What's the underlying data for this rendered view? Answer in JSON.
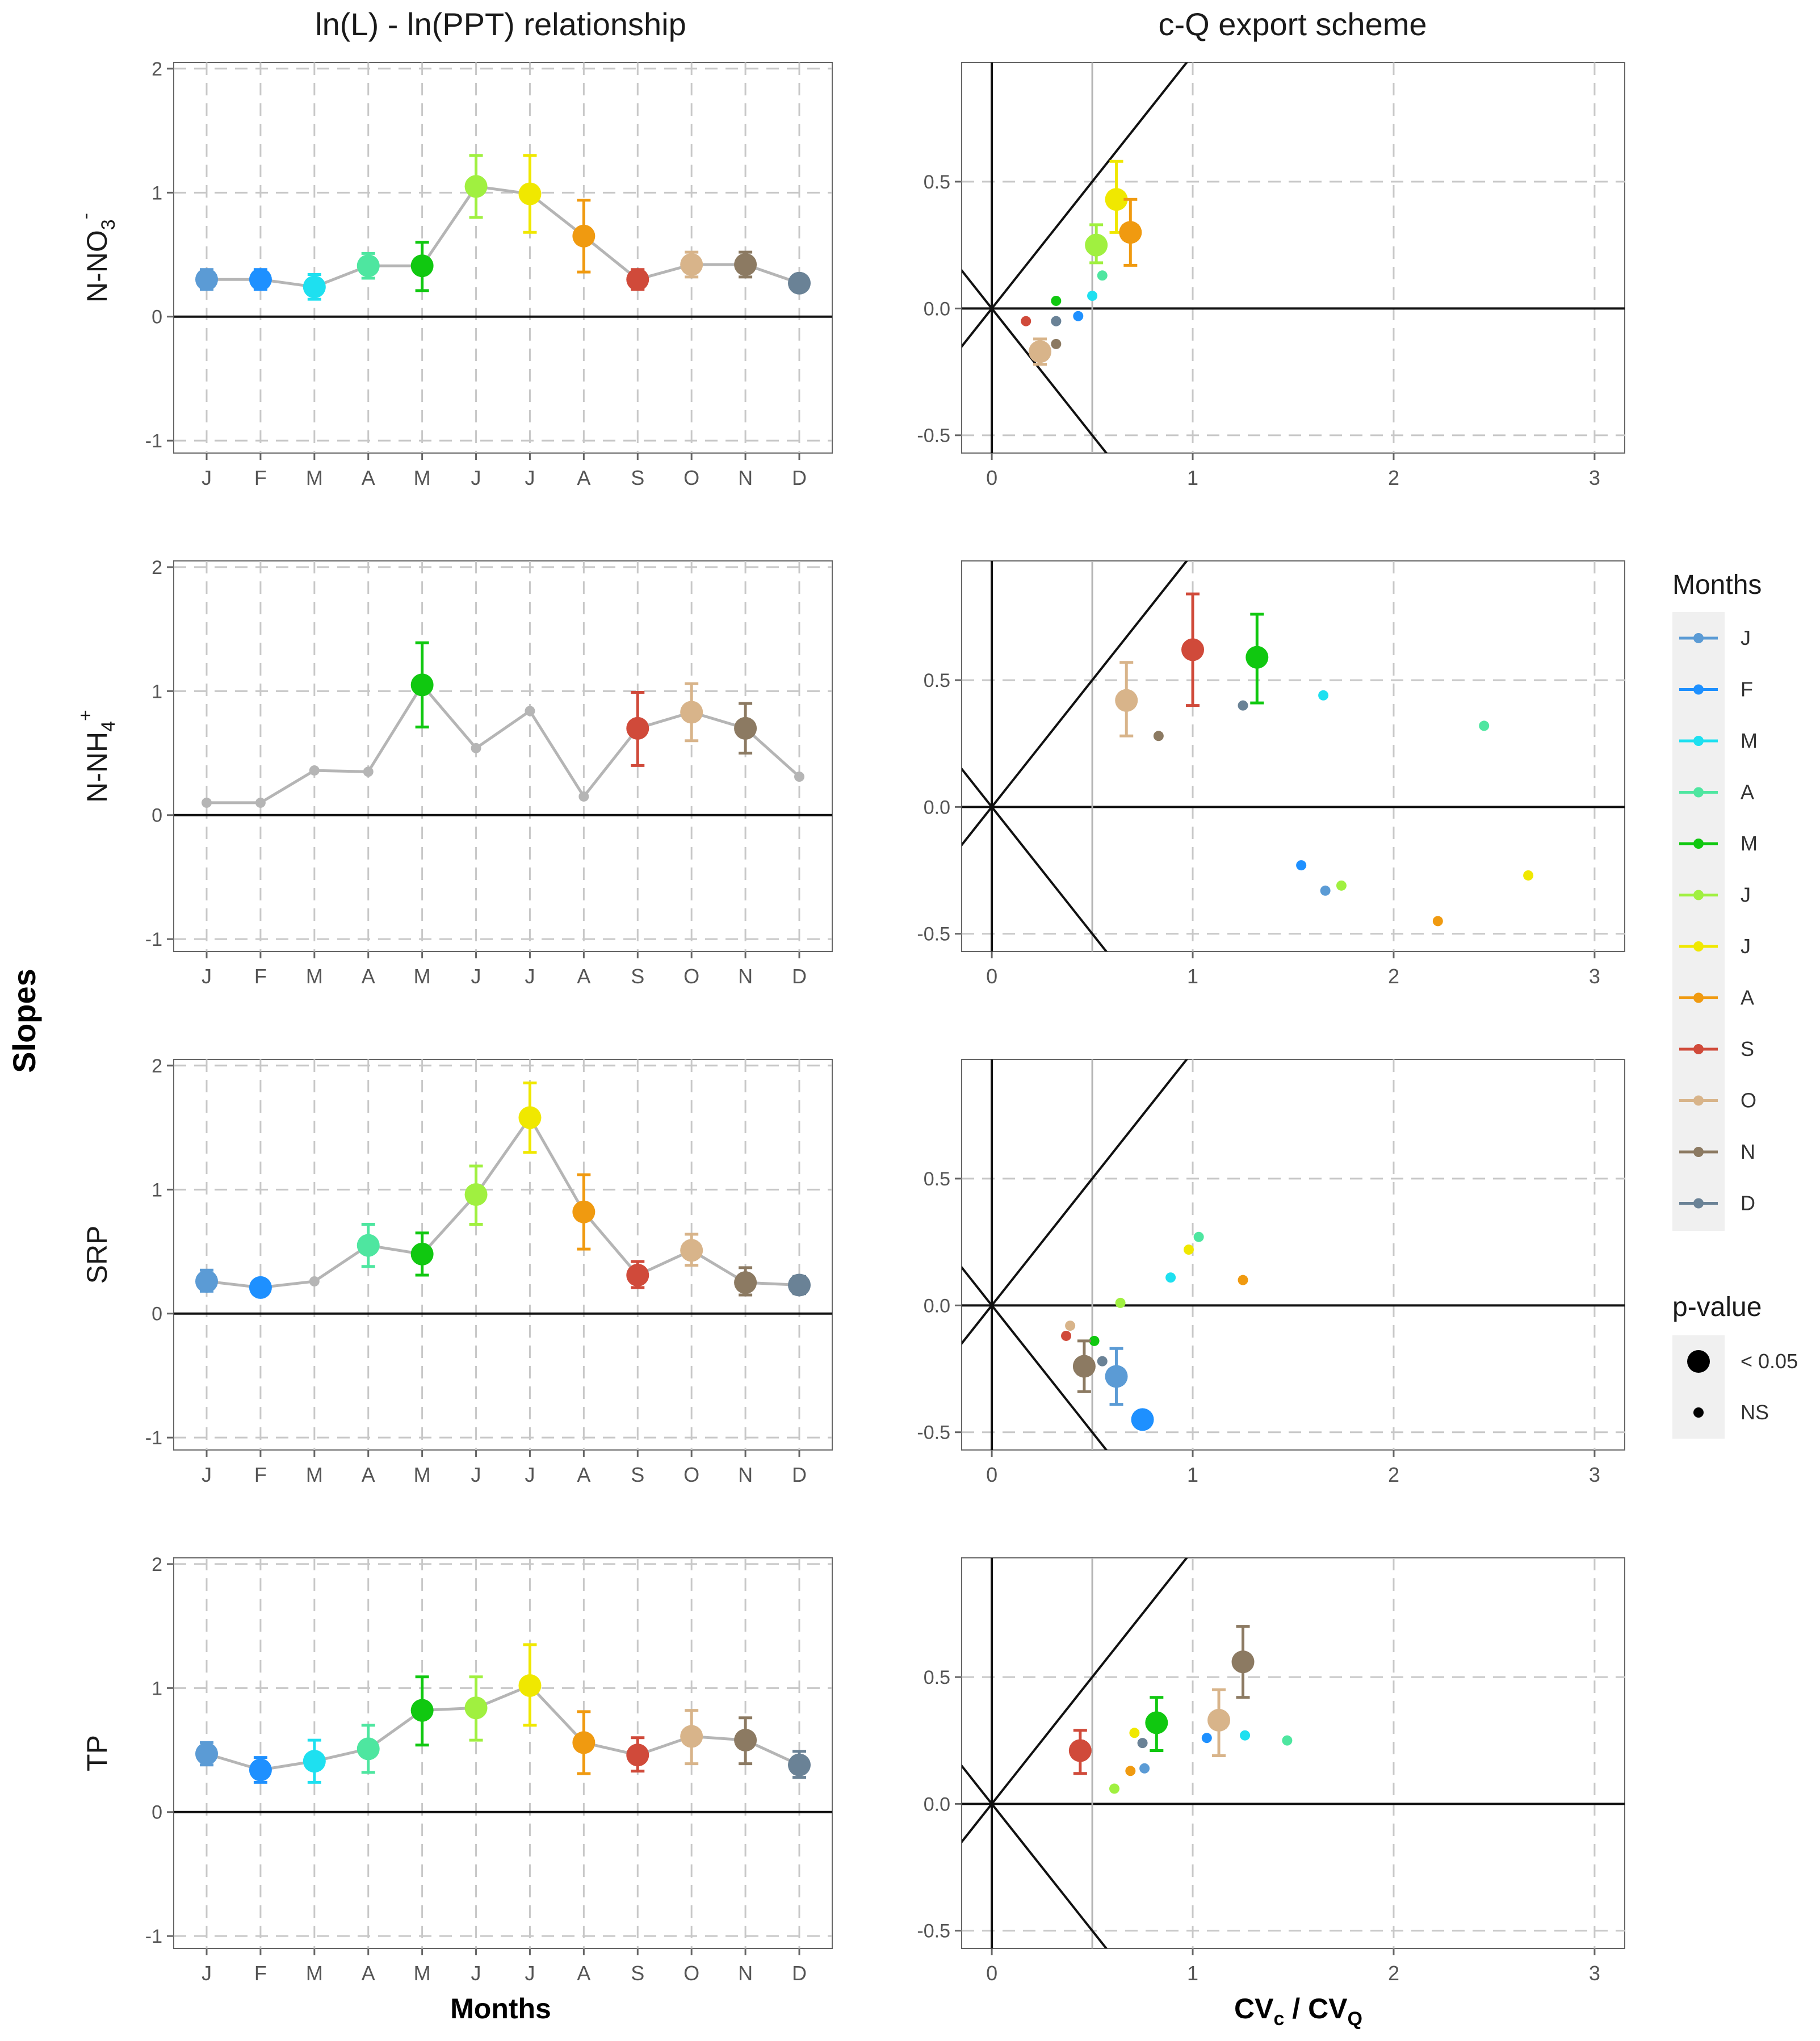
{
  "titles": {
    "left": "ln(L) - ln(PPT) relationship",
    "right": "c-Q export scheme"
  },
  "axis_labels": {
    "y": "Slopes",
    "x_left": "Months",
    "x_right_parts": [
      "CV",
      "c",
      " / CV",
      "Q"
    ]
  },
  "legend": {
    "months_title": "Months",
    "months_labels": [
      "J",
      "F",
      "M",
      "A",
      "M",
      "J",
      "J",
      "A",
      "S",
      "O",
      "N",
      "D"
    ],
    "months_colors": [
      "#5b9bd5",
      "#1e90ff",
      "#1ee0f0",
      "#4ee6a0",
      "#10c810",
      "#a0f040",
      "#f0e800",
      "#f09a10",
      "#d04a3a",
      "#d8b48a",
      "#8c7a62",
      "#6a8296"
    ],
    "pvalue_title": "p-value",
    "pvalue_labels": [
      "< 0.05",
      "NS"
    ]
  },
  "chart_data": [
    {
      "type": "line",
      "panel": "left",
      "row_label": "N-NO3-",
      "row_label_parts": [
        "N-NO",
        "3",
        "-"
      ],
      "categories": [
        "J",
        "F",
        "M",
        "A",
        "M",
        "J",
        "J",
        "A",
        "S",
        "O",
        "N",
        "D"
      ],
      "values": [
        0.3,
        0.3,
        0.24,
        0.41,
        0.41,
        1.05,
        0.99,
        0.65,
        0.3,
        0.42,
        0.42,
        0.27
      ],
      "err_low": [
        0.22,
        0.22,
        0.14,
        0.31,
        0.21,
        0.8,
        0.68,
        0.36,
        0.22,
        0.32,
        0.32,
        0.22
      ],
      "err_high": [
        0.38,
        0.38,
        0.34,
        0.51,
        0.6,
        1.3,
        1.3,
        0.94,
        0.38,
        0.52,
        0.52,
        0.32
      ],
      "significant": [
        true,
        true,
        true,
        true,
        true,
        true,
        true,
        true,
        true,
        true,
        true,
        true
      ],
      "ylim": [
        -1.1,
        2.05
      ],
      "yticks": [
        -1,
        0,
        1,
        2
      ]
    },
    {
      "type": "line",
      "panel": "left",
      "row_label": "N-NH4+",
      "row_label_parts": [
        "N-NH",
        "4",
        "+"
      ],
      "categories": [
        "J",
        "F",
        "M",
        "A",
        "M",
        "J",
        "J",
        "A",
        "S",
        "O",
        "N",
        "D"
      ],
      "values": [
        0.1,
        0.1,
        0.36,
        0.35,
        1.05,
        0.54,
        0.84,
        0.15,
        0.7,
        0.83,
        0.7,
        0.31
      ],
      "err_low": [
        null,
        null,
        null,
        null,
        0.71,
        null,
        null,
        null,
        0.4,
        0.6,
        0.5,
        null
      ],
      "err_high": [
        null,
        null,
        null,
        null,
        1.39,
        null,
        null,
        null,
        0.99,
        1.06,
        0.9,
        null
      ],
      "significant": [
        false,
        false,
        false,
        false,
        true,
        false,
        false,
        false,
        true,
        true,
        true,
        false
      ],
      "ylim": [
        -1.1,
        2.05
      ],
      "yticks": [
        -1,
        0,
        1,
        2
      ]
    },
    {
      "type": "line",
      "panel": "left",
      "row_label": "SRP",
      "row_label_parts": [
        "SRP",
        "",
        ""
      ],
      "categories": [
        "J",
        "F",
        "M",
        "A",
        "M",
        "J",
        "J",
        "A",
        "S",
        "O",
        "N",
        "D"
      ],
      "values": [
        0.26,
        0.21,
        0.26,
        0.55,
        0.48,
        0.96,
        1.58,
        0.82,
        0.31,
        0.51,
        0.25,
        0.23
      ],
      "err_low": [
        0.18,
        0.16,
        null,
        0.38,
        0.31,
        0.72,
        1.3,
        0.52,
        0.21,
        0.39,
        0.15,
        0.16
      ],
      "err_high": [
        0.35,
        0.27,
        null,
        0.72,
        0.65,
        1.19,
        1.86,
        1.12,
        0.42,
        0.64,
        0.37,
        0.3
      ],
      "significant": [
        true,
        true,
        false,
        true,
        true,
        true,
        true,
        true,
        true,
        true,
        true,
        true
      ],
      "ylim": [
        -1.1,
        2.05
      ],
      "yticks": [
        -1,
        0,
        1,
        2
      ]
    },
    {
      "type": "line",
      "panel": "left",
      "row_label": "TP",
      "row_label_parts": [
        "TP",
        "",
        ""
      ],
      "categories": [
        "J",
        "F",
        "M",
        "A",
        "M",
        "J",
        "J",
        "A",
        "S",
        "O",
        "N",
        "D"
      ],
      "values": [
        0.47,
        0.34,
        0.41,
        0.51,
        0.82,
        0.84,
        1.02,
        0.56,
        0.46,
        0.61,
        0.58,
        0.38
      ],
      "err_low": [
        0.38,
        0.24,
        0.24,
        0.32,
        0.54,
        0.58,
        0.7,
        0.31,
        0.33,
        0.39,
        0.39,
        0.28
      ],
      "err_high": [
        0.56,
        0.44,
        0.58,
        0.7,
        1.09,
        1.09,
        1.35,
        0.81,
        0.6,
        0.82,
        0.76,
        0.49
      ],
      "significant": [
        true,
        true,
        true,
        true,
        true,
        true,
        true,
        true,
        true,
        true,
        true,
        true
      ],
      "ylim": [
        -1.1,
        2.05
      ],
      "yticks": [
        -1,
        0,
        1,
        2
      ]
    },
    {
      "type": "scatter",
      "panel": "right",
      "row_label": "N-NO3-",
      "months": [
        "J",
        "F",
        "M",
        "A",
        "M",
        "J",
        "J",
        "A",
        "S",
        "O",
        "N",
        "D"
      ],
      "x": [
        0.32,
        0.43,
        0.5,
        0.55,
        0.32,
        0.52,
        0.62,
        0.69,
        0.17,
        0.24,
        0.32,
        0.32
      ],
      "y": [
        -0.05,
        -0.03,
        0.05,
        0.13,
        0.03,
        0.25,
        0.43,
        0.3,
        -0.05,
        -0.17,
        -0.14,
        -0.05
      ],
      "err_low": [
        null,
        null,
        null,
        null,
        null,
        0.18,
        0.3,
        0.17,
        null,
        -0.22,
        null,
        null
      ],
      "err_high": [
        null,
        null,
        null,
        null,
        null,
        0.33,
        0.58,
        0.43,
        null,
        -0.12,
        null,
        null
      ],
      "significant": [
        false,
        false,
        false,
        false,
        false,
        true,
        true,
        true,
        false,
        true,
        false,
        false
      ],
      "xlim": [
        -0.15,
        3.15
      ],
      "ylim": [
        -0.57,
        0.97
      ],
      "xticks": [
        0,
        1,
        2,
        3
      ],
      "yticks": [
        -0.5,
        0.0,
        0.5
      ]
    },
    {
      "type": "scatter",
      "panel": "right",
      "row_label": "N-NH4+",
      "months": [
        "J",
        "F",
        "M",
        "A",
        "M",
        "J",
        "J",
        "A",
        "S",
        "O",
        "N",
        "D"
      ],
      "x": [
        1.66,
        1.54,
        1.65,
        2.45,
        1.32,
        1.74,
        2.67,
        2.22,
        1.0,
        0.67,
        0.83,
        1.25
      ],
      "y": [
        -0.33,
        -0.23,
        0.44,
        0.32,
        0.59,
        -0.31,
        -0.27,
        -0.45,
        0.62,
        0.42,
        0.28,
        0.4
      ],
      "err_low": [
        null,
        null,
        null,
        null,
        0.41,
        null,
        null,
        null,
        0.4,
        0.28,
        null,
        null
      ],
      "err_high": [
        null,
        null,
        null,
        null,
        0.76,
        null,
        null,
        null,
        0.84,
        0.57,
        null,
        null
      ],
      "significant": [
        false,
        false,
        false,
        false,
        true,
        false,
        false,
        false,
        true,
        true,
        false,
        false
      ],
      "xlim": [
        -0.15,
        3.15
      ],
      "ylim": [
        -0.57,
        0.97
      ],
      "xticks": [
        0,
        1,
        2,
        3
      ],
      "yticks": [
        -0.5,
        0.0,
        0.5
      ]
    },
    {
      "type": "scatter",
      "panel": "right",
      "row_label": "SRP",
      "months": [
        "J",
        "F",
        "M",
        "A",
        "M",
        "J",
        "J",
        "A",
        "S",
        "O",
        "N",
        "D"
      ],
      "x": [
        0.62,
        0.75,
        0.89,
        1.03,
        0.51,
        0.64,
        0.98,
        1.25,
        0.37,
        0.39,
        0.46,
        0.55
      ],
      "y": [
        -0.28,
        -0.45,
        0.11,
        0.27,
        -0.14,
        0.01,
        0.22,
        0.1,
        -0.12,
        -0.08,
        -0.24,
        -0.22
      ],
      "err_low": [
        -0.39,
        null,
        null,
        null,
        null,
        null,
        null,
        null,
        null,
        null,
        -0.34,
        null
      ],
      "err_high": [
        -0.17,
        null,
        null,
        null,
        null,
        null,
        null,
        null,
        null,
        null,
        -0.14,
        null
      ],
      "significant": [
        true,
        true,
        false,
        false,
        false,
        false,
        false,
        false,
        false,
        false,
        true,
        false
      ],
      "xlim": [
        -0.15,
        3.15
      ],
      "ylim": [
        -0.57,
        0.97
      ],
      "xticks": [
        0,
        1,
        2,
        3
      ],
      "yticks": [
        -0.5,
        0.0,
        0.5
      ]
    },
    {
      "type": "scatter",
      "panel": "right",
      "row_label": "TP",
      "months": [
        "J",
        "F",
        "M",
        "A",
        "M",
        "J",
        "J",
        "A",
        "S",
        "O",
        "N",
        "D"
      ],
      "x": [
        0.76,
        1.07,
        1.26,
        1.47,
        0.82,
        0.61,
        0.71,
        0.69,
        0.44,
        1.13,
        1.25,
        0.75
      ],
      "y": [
        0.14,
        0.26,
        0.27,
        0.25,
        0.32,
        0.06,
        0.28,
        0.13,
        0.21,
        0.33,
        0.56,
        0.24
      ],
      "err_low": [
        null,
        null,
        null,
        null,
        0.21,
        null,
        null,
        null,
        0.12,
        0.19,
        0.42,
        null
      ],
      "err_high": [
        null,
        null,
        null,
        null,
        0.42,
        null,
        null,
        null,
        0.29,
        0.45,
        0.7,
        null
      ],
      "significant": [
        false,
        false,
        false,
        false,
        true,
        false,
        false,
        false,
        true,
        true,
        true,
        false
      ],
      "xlim": [
        -0.15,
        3.15
      ],
      "ylim": [
        -0.57,
        0.97
      ],
      "xticks": [
        0,
        1,
        2,
        3
      ],
      "yticks": [
        -0.5,
        0.0,
        0.5
      ]
    }
  ]
}
